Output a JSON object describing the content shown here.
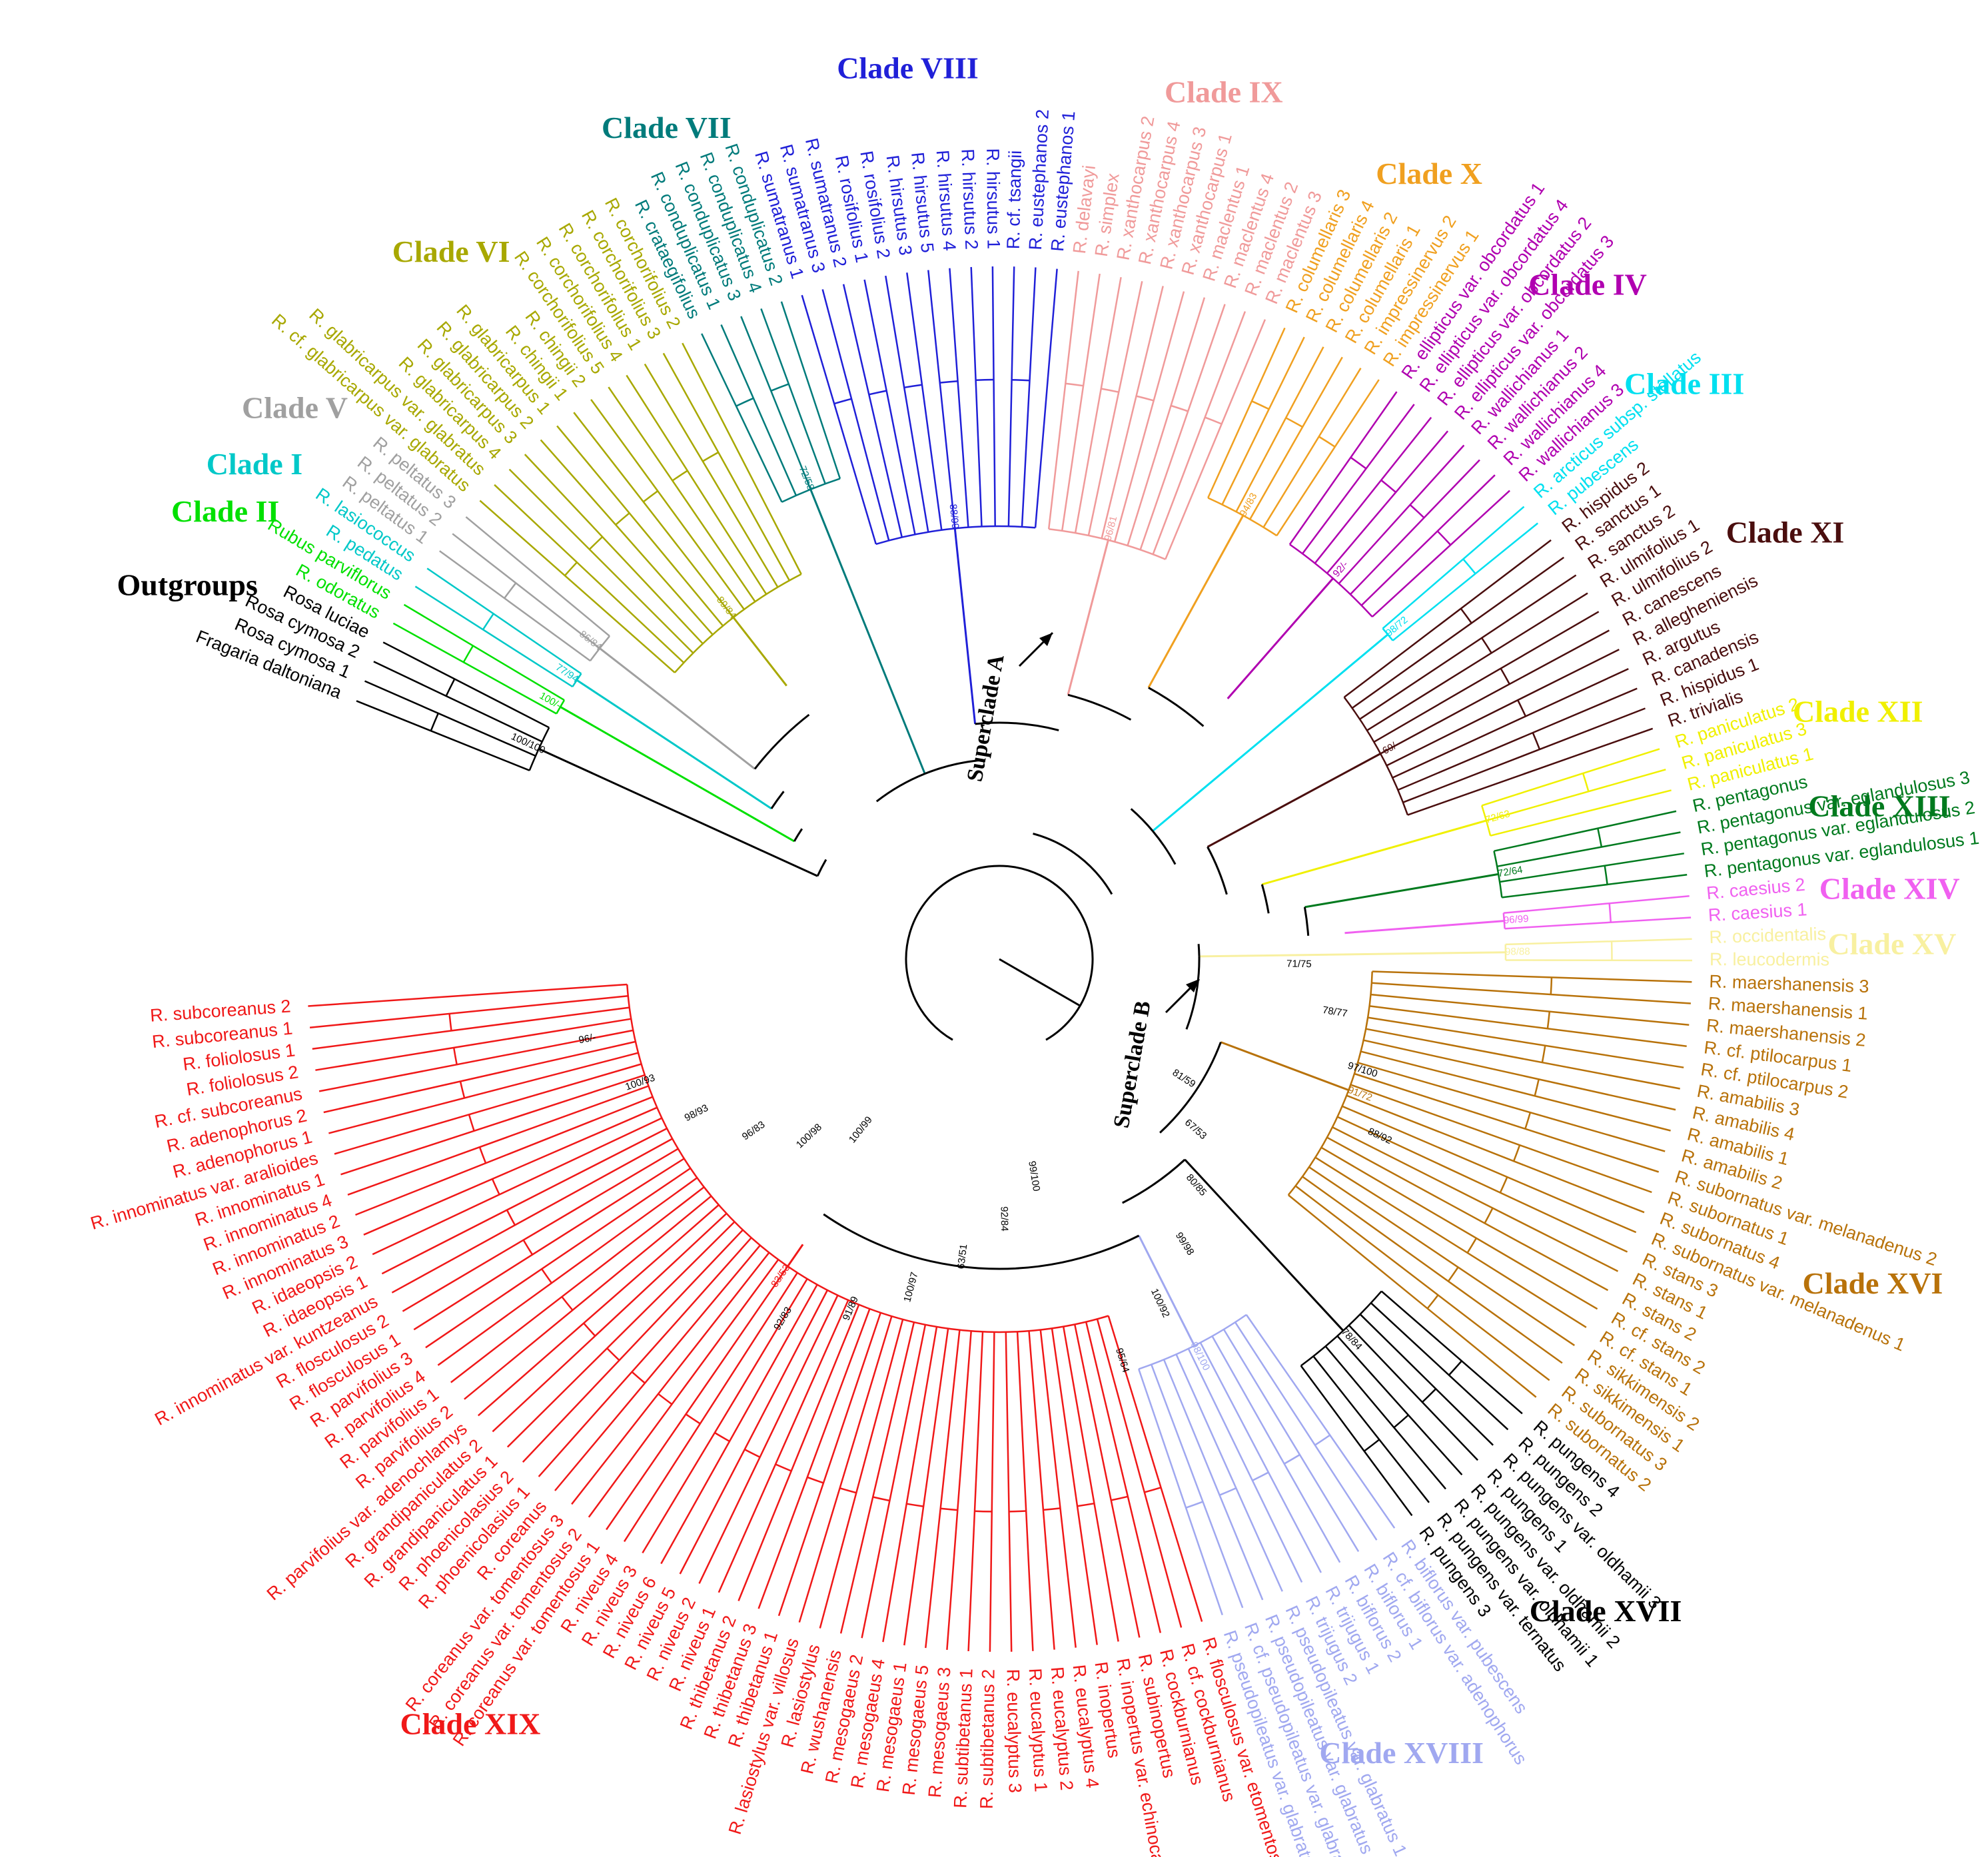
{
  "figure": {
    "superclades": [
      {
        "id": "A",
        "label": "Superclade A"
      },
      {
        "id": "B",
        "label": "Superclade B"
      }
    ],
    "clades": [
      {
        "label": "Outgroups",
        "color": "#000000",
        "taxa": [
          "Fragaria daltoniana",
          "Rosa cymosa 1",
          "Rosa cymosa 2",
          "Rosa luciae"
        ]
      },
      {
        "label": "Clade II",
        "color": "#00e000",
        "taxa": [
          "R. odoratus",
          "Rubus parviflorus"
        ]
      },
      {
        "label": "Clade I",
        "color": "#00c8c8",
        "taxa": [
          "R. pedatus",
          "R. lasiococcus"
        ]
      },
      {
        "label": "Clade V",
        "color": "#a0a0a0",
        "taxa": [
          "R. peltatus 1",
          "R. peltatus 2",
          "R. peltatus 3"
        ]
      },
      {
        "label": "Clade VI",
        "color": "#a8a800",
        "taxa": [
          "R. cf. glabricarpus var. glabratus",
          "R. glabricarpus var. glabratus",
          "R. glabricarpus 4",
          "R. glabricarpus 3",
          "R. glabricarpus 2",
          "R. glabricarpus 1",
          "R. chingii 1",
          "R. chingii 2",
          "R. corchorifolius 5",
          "R. corchorifolius 4",
          "R. corchorifolius 1",
          "R. corchorifolius 3",
          "R. corchorifolius 2"
        ]
      },
      {
        "label": "Clade VII",
        "color": "#007b7b",
        "taxa": [
          "R. crataegifolius",
          "R. conduplicatus 1",
          "R. conduplicatus 3",
          "R. conduplicatus 4",
          "R. conduplicatus 2"
        ]
      },
      {
        "label": "Clade VIII",
        "color": "#2020d8",
        "taxa": [
          "R. sumatranus 1",
          "R. sumatranus 3",
          "R. sumatranus 2",
          "R. rosifolius 1",
          "R. rosifolius 2",
          "R. hirsutus 3",
          "R. hirsutus 5",
          "R. hirsutus 4",
          "R. hirsutus 2",
          "R. hirsutus 1",
          "R. cf. tsangii",
          "R. eustephanos 2",
          "R. eustephanos 1"
        ]
      },
      {
        "label": "Clade IX",
        "color": "#f09a9a",
        "taxa": [
          "R. delavayi",
          "R. simplex",
          "R. xanthocarpus 2",
          "R. xanthocarpus 4",
          "R. xanthocarpus 3",
          "R. xanthocarpus 1",
          "R. maclentus 1",
          "R. maclentus 4",
          "R. maclentus 2",
          "R. maclentus 3"
        ]
      },
      {
        "label": "Clade X",
        "color": "#f0a020",
        "taxa": [
          "R. columellaris 3",
          "R. columellaris 4",
          "R. columellaris 2",
          "R. columellaris 1",
          "R. impressinervus 2",
          "R. impressinervus 1"
        ]
      },
      {
        "label": "Clade IV",
        "color": "#b000b0",
        "taxa": [
          "R. ellipticus var. obcordatus 1",
          "R. ellipticus var. obcordatus 4",
          "R. ellipticus var. obcordatus 2",
          "R. ellipticus var. obcordatus 3",
          "R. wallichianus 1",
          "R. wallichianus 2",
          "R. wallichianus 4",
          "R. wallichianus 3"
        ]
      },
      {
        "label": "Clade III",
        "color": "#00e0f0",
        "taxa": [
          "R. arcticus subsp. stellatus",
          "R. pubescens"
        ]
      },
      {
        "label": "Clade XI",
        "color": "#4a0e0e",
        "taxa": [
          "R. hispidus 2",
          "R. sanctus 1",
          "R. sanctus 2",
          "R. ulmifolius 1",
          "R. ulmifolius 2",
          "R. canescens",
          "R. allegheniensis",
          "R. argutus",
          "R. canadensis",
          "R. hispidus 1",
          "R. trivialis"
        ]
      },
      {
        "label": "Clade XII",
        "color": "#f0f000",
        "taxa": [
          "R. paniculatus 2",
          "R. paniculatus 3",
          "R. paniculatus 1"
        ]
      },
      {
        "label": "Clade XIII",
        "color": "#007a1e",
        "taxa": [
          "R. pentagonus",
          "R. pentagonus var. eglandulosus 3",
          "R. pentagonus var. eglandulosus 2",
          "R. pentagonus var. eglandulosus 1"
        ]
      },
      {
        "label": "Clade XIV",
        "color": "#f060f0",
        "taxa": [
          "R. caesius 2",
          "R. caesius 1"
        ]
      },
      {
        "label": "Clade XV",
        "color": "#f8f0a0",
        "taxa": [
          "R. occidentalis",
          "R. leucodermis"
        ]
      },
      {
        "label": "Clade XVI",
        "color": "#b8720a",
        "taxa": [
          "R. maershanensis 3",
          "R. maershanensis 1",
          "R. maershanensis 2",
          "R. cf. ptilocarpus 1",
          "R. cf. ptilocarpus 2",
          "R. amabilis 3",
          "R. amabilis 4",
          "R. amabilis 1",
          "R. amabilis 2",
          "R. subornatus var. melanadenus 2",
          "R. subornatus 1",
          "R. subornatus 4",
          "R. subornatus var. melanadenus 1",
          "R. stans 3",
          "R. stans 1",
          "R. stans 2",
          "R. cf. stans 2",
          "R. cf. stans 1",
          "R. sikkimensis 2",
          "R. sikkimensis 1",
          "R. subornatus 3",
          "R. subornatus 2"
        ]
      },
      {
        "label": "Clade XVII",
        "color": "#000000",
        "taxa": [
          "R. pungens 4",
          "R. pungens 2",
          "R. pungens var. oldhamii 3",
          "R. pungens 1",
          "R. pungens var. oldhamii 2",
          "R. pungens var. oldhamii 1",
          "R. pungens var. ternatus",
          "R. pungens 3"
        ]
      },
      {
        "label": "Clade XVIII",
        "color": "#a0a8f0",
        "taxa": [
          "R. biflorus var. pubescens",
          "R. cf. biflorus var. adenophorus",
          "R. biflorus 1",
          "R. biflorus 2",
          "R. trijugus 1",
          "R. trijugus 2",
          "R. pseudopileatus var. glabratus 1",
          "R. pseudopileatus var. glabratus 2",
          "R. cf. pseudopileatus var. glabratus",
          "R. pseudopileatus var. glabratus 3"
        ]
      },
      {
        "label": "Clade XIX",
        "color": "#f01818",
        "taxa": [
          "R. flosculosus var. etomentosus",
          "R. cf. cockburnianus",
          "R. cockburnianus",
          "R. subinopertus",
          "R. inopertus var. echinocalyx",
          "R. inopertus",
          "R. eucalyptus 4",
          "R. eucalyptus 2",
          "R. eucalyptus 1",
          "R. eucalyptus 3",
          "R. subtibetanus 2",
          "R. subtibetanus 1",
          "R. mesogaeus 3",
          "R. mesogaeus 5",
          "R. mesogaeus 1",
          "R. mesogaeus 4",
          "R. mesogaeus 2",
          "R. wushanensis",
          "R. lasiostylus",
          "R. lasiostylus var. villosus",
          "R. thibetanus 1",
          "R. thibetanus 3",
          "R. thibetanus 2",
          "R. niveus 1",
          "R. niveus 2",
          "R. niveus 5",
          "R. niveus 6",
          "R. niveus 3",
          "R. niveus 4",
          "R. coreanus var. tomentosus 1",
          "R. coreanus var. tomentosus 2",
          "R. coreanus var. tomentosus 3",
          "R. coreanus",
          "R. phoenicolasius 1",
          "R. phoenicolasius 2",
          "R. grandipaniculatus 1",
          "R. grandipaniculatus 2",
          "R. parvifolius var. adenochlamys",
          "R. parvifolius 2",
          "R. parvifolius 1",
          "R. parvifolius 4",
          "R. parvifolius 3",
          "R. flosculosus 1",
          "R. flosculosus 2",
          "R. innominatus var. kuntzeanus",
          "R. idaeopsis 1",
          "R. idaeopsis 2",
          "R. innominatus 3",
          "R. innominatus 2",
          "R. innominatus 4",
          "R. innominatus 1",
          "R. innominatus var. aralioides",
          "R. adenophorus 1",
          "R. adenophorus 2",
          "R. cf. subcoreanus",
          "R. foliolosus 2",
          "R. foliolosus 1",
          "R. subcoreanus 1",
          "R. subcoreanus 2"
        ]
      }
    ],
    "support_values": [
      "100/100",
      "100/-",
      "77/94",
      "86/84",
      "89/84",
      "72/58",
      "88/99",
      "96/81",
      "94/83",
      "92/-",
      "98/72",
      "69/-",
      "72/63",
      "72/64",
      "96/99",
      "98/88",
      "91/72",
      "78/84",
      "98/100",
      "83/53",
      "71/75",
      "78/77",
      "97/100",
      "88/92",
      "81/59",
      "67/53",
      "80/85",
      "99/98",
      "100/92",
      "95/64",
      "99/100",
      "92/84",
      "63/51",
      "100/97",
      "91/89",
      "92/83",
      "100/99",
      "100/98",
      "96/83",
      "98/93",
      "100/93",
      "96/-"
    ]
  },
  "colors": {
    "branch_default": "#000000",
    "background": "#ffffff"
  }
}
